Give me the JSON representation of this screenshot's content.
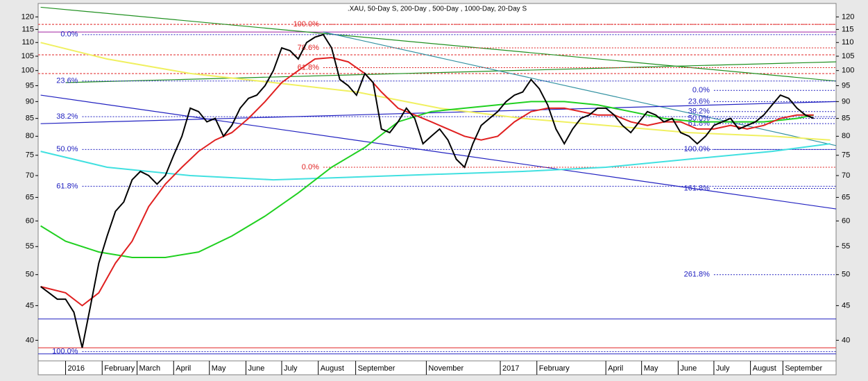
{
  "chart_data": {
    "type": "line",
    "title": ".XAU, 50-Day S, 200-Day , 500-Day , 1000-Day, 20-Day S",
    "log_scale": true,
    "ylim": [
      37.3,
      125.6
    ],
    "yticks": [
      40,
      45,
      50,
      55,
      60,
      65,
      70,
      75,
      80,
      85,
      90,
      95,
      100,
      105,
      110,
      115,
      120
    ],
    "xlim": [
      -3.3,
      92.7
    ],
    "xticks": [
      {
        "value": 0,
        "label": "2016"
      },
      {
        "value": 4.4,
        "label": "February"
      },
      {
        "value": 8.6,
        "label": "March"
      },
      {
        "value": 13,
        "label": "April"
      },
      {
        "value": 17.3,
        "label": "May"
      },
      {
        "value": 21.7,
        "label": "June"
      },
      {
        "value": 26,
        "label": "July"
      },
      {
        "value": 30.4,
        "label": "August"
      },
      {
        "value": 34.9,
        "label": "September"
      },
      {
        "value": 43.4,
        "label": "November"
      },
      {
        "value": 52.3,
        "label": "2017"
      },
      {
        "value": 56.7,
        "label": "February"
      },
      {
        "value": 65,
        "label": "April"
      },
      {
        "value": 69.3,
        "label": "May"
      },
      {
        "value": 73.7,
        "label": "June"
      },
      {
        "value": 78,
        "label": "July"
      },
      {
        "value": 82.4,
        "label": "August"
      },
      {
        "value": 86.3,
        "label": "September"
      }
    ],
    "series": [
      {
        "color": "#000000",
        "x": [
          -3,
          -2,
          -1,
          0,
          1,
          2,
          3,
          4,
          5,
          6,
          7,
          8,
          9,
          10,
          11,
          12,
          13,
          14,
          15,
          16,
          17,
          18,
          19,
          20,
          21,
          22,
          23,
          24,
          25,
          26,
          27,
          28,
          29,
          30,
          31,
          32,
          33,
          34,
          35,
          36,
          37,
          38,
          39,
          40,
          41,
          42,
          43,
          44,
          45,
          46,
          47,
          48,
          49,
          50,
          51,
          52,
          53,
          54,
          55,
          56,
          57,
          58,
          59,
          60,
          61,
          62,
          63,
          64,
          65,
          66,
          67,
          68,
          69,
          70,
          71,
          72,
          73,
          74,
          75,
          76,
          77,
          78,
          79,
          80,
          81,
          82,
          83,
          84,
          85,
          86,
          87,
          88,
          89,
          90
        ],
        "values": [
          48,
          47,
          46,
          46,
          44,
          39,
          45,
          52,
          57,
          62,
          64,
          69,
          71,
          70,
          68,
          70,
          75,
          80,
          88,
          87,
          84,
          85,
          80,
          83,
          88,
          91,
          92,
          95,
          100,
          108,
          107,
          104,
          110,
          112,
          113,
          108,
          97,
          95,
          92,
          99,
          96,
          82,
          81,
          84,
          88,
          85,
          78,
          80,
          82,
          79,
          74,
          72,
          78,
          83,
          85,
          87,
          90,
          92,
          93,
          97,
          94,
          89,
          82,
          78,
          82,
          85,
          86,
          88,
          88,
          86,
          83,
          81,
          84,
          87,
          86,
          84,
          85,
          81,
          80,
          78,
          80,
          83,
          84,
          85,
          82,
          83,
          84,
          86,
          89,
          92,
          91,
          88,
          86,
          85
        ]
      },
      {
        "color": "#e02020",
        "x": [
          -3,
          0,
          2,
          4,
          6,
          8,
          10,
          12,
          14,
          16,
          18,
          20,
          22,
          24,
          26,
          28,
          30,
          32,
          34,
          36,
          38,
          40,
          42,
          44,
          46,
          48,
          50,
          52,
          54,
          56,
          58,
          60,
          62,
          64,
          66,
          68,
          70,
          72,
          74,
          76,
          78,
          80,
          82,
          84,
          86,
          88,
          90
        ],
        "values": [
          48,
          47,
          45,
          47,
          52,
          56,
          63,
          68,
          72,
          76,
          79,
          81,
          85,
          90,
          96,
          100,
          104,
          104.5,
          103,
          99,
          93,
          88,
          86,
          84,
          82,
          80,
          79,
          80,
          84,
          87,
          88,
          88,
          87,
          86,
          86,
          84,
          83,
          84,
          84,
          82,
          82,
          83,
          82,
          83,
          85,
          86,
          86
        ]
      },
      {
        "color": "#20d020",
        "x": [
          -3,
          0,
          4,
          8,
          12,
          16,
          20,
          24,
          28,
          32,
          36,
          40,
          44,
          48,
          52,
          56,
          60,
          64,
          68,
          72,
          76,
          80,
          84,
          88,
          90
        ],
        "values": [
          59,
          56,
          54,
          53,
          53,
          54,
          57,
          61,
          66,
          72,
          77,
          84,
          87,
          88,
          89,
          90,
          90,
          89,
          87,
          85,
          84,
          84,
          84,
          85,
          86
        ]
      },
      {
        "color": "#f0f060",
        "x": [
          -3,
          5,
          15,
          25,
          35,
          45,
          55,
          65,
          75,
          85,
          92
        ],
        "values": [
          110,
          104,
          99,
          96,
          93,
          88,
          85,
          83,
          81,
          80,
          79
        ]
      },
      {
        "color": "#40e0e0",
        "x": [
          -3,
          5,
          15,
          25,
          40,
          55,
          65,
          75,
          85,
          92
        ],
        "values": [
          76,
          72,
          70,
          69,
          70,
          71,
          72,
          74,
          76,
          78
        ]
      }
    ],
    "trendlines": [
      {
        "color": "#2020c0",
        "x": [
          -3,
          92.7
        ],
        "values": [
          92,
          62.5
        ]
      },
      {
        "color": "#209020",
        "x": [
          -3,
          92.7
        ],
        "values": [
          124,
          96.5
        ]
      },
      {
        "color": "#209020",
        "x": [
          0,
          92.7
        ],
        "values": [
          96,
          103
        ]
      },
      {
        "color": "#3090a0",
        "x": [
          31,
          92.7
        ],
        "values": [
          114,
          77.5
        ]
      },
      {
        "color": "#2020c0",
        "x": [
          -3,
          92.7
        ],
        "values": [
          83.5,
          90
        ]
      }
    ],
    "hlines": [
      {
        "value": 117,
        "color": "#e02020",
        "dash": true
      },
      {
        "value": 105.5,
        "color": "#e02020",
        "dash": true
      },
      {
        "value": 99,
        "color": "#e02020",
        "dash": true
      },
      {
        "value": 114,
        "color": "#a020a0",
        "dash": false
      },
      {
        "value": 43,
        "color": "#2020c0",
        "dash": false
      },
      {
        "value": 39,
        "color": "#e02020",
        "dash": false
      },
      {
        "value": 38.2,
        "color": "#2020c0",
        "dash": false
      }
    ],
    "fib_levels": [
      {
        "label": "0.0%",
        "value": 113,
        "x": 2,
        "color": "#2020c0"
      },
      {
        "label": "23.6%",
        "value": 96.5,
        "x": 2,
        "color": "#2020c0"
      },
      {
        "label": "38.2%",
        "value": 85.5,
        "x": 2,
        "color": "#2020c0"
      },
      {
        "label": "50.0%",
        "value": 76.5,
        "x": 2,
        "color": "#2020c0"
      },
      {
        "label": "61.8%",
        "value": 67.5,
        "x": 2,
        "color": "#2020c0"
      },
      {
        "label": "100.0%",
        "value": 38.5,
        "x": 2,
        "color": "#2020c0"
      },
      {
        "label": "100.0%",
        "value": 117,
        "x": 31,
        "color": "#e02020"
      },
      {
        "label": "78.6%",
        "value": 108,
        "x": 31,
        "color": "#e02020"
      },
      {
        "label": "61.8%",
        "value": 101,
        "x": 31,
        "color": "#e02020"
      },
      {
        "label": "0.0%",
        "value": 72,
        "x": 31,
        "color": "#e02020"
      },
      {
        "label": "0.0%",
        "value": 93.5,
        "x": 78,
        "color": "#2020c0"
      },
      {
        "label": "23.6%",
        "value": 90,
        "x": 78,
        "color": "#2020c0"
      },
      {
        "label": "38.2%",
        "value": 87,
        "x": 78,
        "color": "#2020c0"
      },
      {
        "label": "50.0%",
        "value": 85,
        "x": 78,
        "color": "#2020c0"
      },
      {
        "label": "61.8%",
        "value": 83.5,
        "x": 78,
        "color": "#2020c0"
      },
      {
        "label": "100.0%",
        "value": 76.5,
        "x": 78,
        "color": "#2020c0"
      },
      {
        "label": "161.8%",
        "value": 67,
        "x": 78,
        "color": "#2020c0"
      },
      {
        "label": "261.8%",
        "value": 50,
        "x": 78,
        "color": "#2020c0"
      }
    ]
  }
}
